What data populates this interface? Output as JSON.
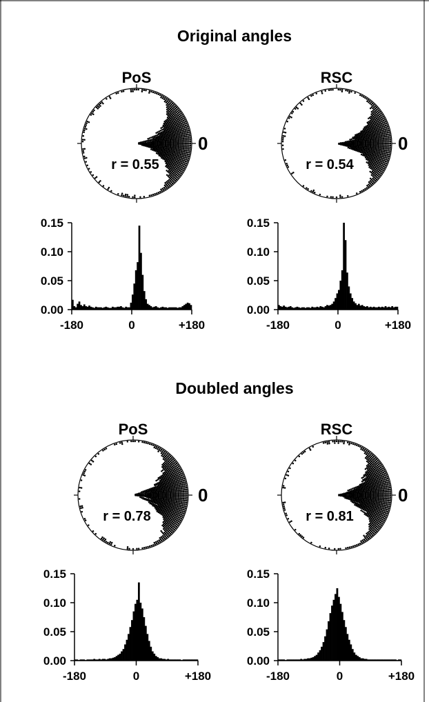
{
  "sections": [
    {
      "title": "Original angles",
      "panels": [
        {
          "label": "PoS",
          "r_text": "r = 0.55",
          "zero_label": "0"
        },
        {
          "label": "RSC",
          "r_text": "r = 0.54",
          "zero_label": "0"
        }
      ]
    },
    {
      "title": "Doubled angles",
      "panels": [
        {
          "label": "PoS",
          "r_text": "r = 0.78",
          "zero_label": "0"
        },
        {
          "label": "RSC",
          "r_text": "r = 0.81",
          "zero_label": "0"
        }
      ]
    }
  ],
  "axes": {
    "x_tick_labels": [
      "-180",
      "0",
      "+180"
    ],
    "y_tick_labels": [
      "0.00",
      "0.05",
      "0.10",
      "0.15"
    ]
  },
  "chart_data": [
    {
      "type": "polar-dot-histogram",
      "section": "Original angles",
      "title": "PoS",
      "annotation": "r = 0.55",
      "r": 0.55,
      "peak_direction_deg": 0,
      "concentration": 5.5
    },
    {
      "type": "polar-dot-histogram",
      "section": "Original angles",
      "title": "RSC",
      "annotation": "r = 0.54",
      "r": 0.54,
      "peak_direction_deg": 0,
      "concentration": 7.0
    },
    {
      "type": "bar",
      "section": "Original angles",
      "title": "PoS",
      "xlim": [
        -180,
        180
      ],
      "ylim": [
        0,
        0.15
      ],
      "x_ticks": [
        -180,
        0,
        180
      ],
      "y_ticks": [
        0,
        0.05,
        0.1,
        0.15
      ],
      "peak_value": 0.145,
      "values": [
        0.017,
        0.006,
        0.004,
        0.01,
        0.014,
        0.008,
        0.006,
        0.009,
        0.006,
        0.005,
        0.007,
        0.005,
        0.004,
        0.003,
        0.005,
        0.004,
        0.004,
        0.004,
        0.003,
        0.004,
        0.005,
        0.004,
        0.003,
        0.003,
        0.005,
        0.004,
        0.004,
        0.005,
        0.005,
        0.006,
        0.004,
        0.003,
        0.005,
        0.004,
        0.004,
        0.012,
        0.026,
        0.045,
        0.068,
        0.082,
        0.145,
        0.098,
        0.06,
        0.032,
        0.018,
        0.01,
        0.008,
        0.006,
        0.004,
        0.005,
        0.006,
        0.004,
        0.003,
        0.004,
        0.005,
        0.004,
        0.004,
        0.003,
        0.004,
        0.004,
        0.004,
        0.004,
        0.004,
        0.003,
        0.004,
        0.004,
        0.006,
        0.008,
        0.01,
        0.012,
        0.011,
        0.008
      ]
    },
    {
      "type": "bar",
      "section": "Original angles",
      "title": "RSC",
      "xlim": [
        -180,
        180
      ],
      "ylim": [
        0,
        0.15
      ],
      "x_ticks": [
        -180,
        0,
        180
      ],
      "y_ticks": [
        0,
        0.05,
        0.1,
        0.15
      ],
      "peak_value": 0.15,
      "values": [
        0.008,
        0.006,
        0.005,
        0.007,
        0.005,
        0.004,
        0.005,
        0.006,
        0.004,
        0.003,
        0.004,
        0.005,
        0.004,
        0.003,
        0.004,
        0.004,
        0.003,
        0.004,
        0.004,
        0.003,
        0.005,
        0.004,
        0.004,
        0.005,
        0.004,
        0.006,
        0.005,
        0.004,
        0.006,
        0.008,
        0.007,
        0.008,
        0.01,
        0.014,
        0.02,
        0.028,
        0.034,
        0.05,
        0.068,
        0.15,
        0.12,
        0.064,
        0.04,
        0.028,
        0.02,
        0.014,
        0.011,
        0.008,
        0.01,
        0.007,
        0.008,
        0.006,
        0.005,
        0.006,
        0.004,
        0.005,
        0.004,
        0.005,
        0.004,
        0.004,
        0.005,
        0.004,
        0.005,
        0.004,
        0.006,
        0.004,
        0.005,
        0.004,
        0.006,
        0.004,
        0.005,
        0.005
      ]
    },
    {
      "type": "polar-dot-histogram",
      "section": "Doubled angles",
      "title": "PoS",
      "annotation": "r = 0.78",
      "r": 0.78,
      "peak_direction_deg": 0,
      "concentration": 5.0
    },
    {
      "type": "polar-dot-histogram",
      "section": "Doubled angles",
      "title": "RSC",
      "annotation": "r = 0.81",
      "r": 0.81,
      "peak_direction_deg": 0,
      "concentration": 5.5
    },
    {
      "type": "bar",
      "section": "Doubled angles",
      "title": "PoS",
      "xlim": [
        -180,
        180
      ],
      "ylim": [
        0,
        0.15
      ],
      "x_ticks": [
        -180,
        0,
        180
      ],
      "y_ticks": [
        0,
        0.05,
        0.1,
        0.15
      ],
      "peak_value": 0.135,
      "values": [
        0.002,
        0.002,
        0.001,
        0.002,
        0.002,
        0.002,
        0.001,
        0.002,
        0.002,
        0.002,
        0.002,
        0.003,
        0.002,
        0.002,
        0.003,
        0.002,
        0.003,
        0.003,
        0.002,
        0.003,
        0.004,
        0.004,
        0.005,
        0.006,
        0.008,
        0.01,
        0.012,
        0.016,
        0.02,
        0.028,
        0.036,
        0.046,
        0.058,
        0.07,
        0.085,
        0.098,
        0.105,
        0.135,
        0.1,
        0.09,
        0.075,
        0.06,
        0.046,
        0.034,
        0.024,
        0.016,
        0.012,
        0.008,
        0.006,
        0.004,
        0.004,
        0.003,
        0.003,
        0.002,
        0.003,
        0.002,
        0.002,
        0.002,
        0.002,
        0.002,
        0.002,
        0.002,
        0.001,
        0.002,
        0.002,
        0.002,
        0.002,
        0.002,
        0.002,
        0.002,
        0.002,
        0.002
      ]
    },
    {
      "type": "bar",
      "section": "Doubled angles",
      "title": "RSC",
      "xlim": [
        -180,
        180
      ],
      "ylim": [
        0,
        0.15
      ],
      "x_ticks": [
        -180,
        0,
        180
      ],
      "y_ticks": [
        0,
        0.05,
        0.1,
        0.15
      ],
      "peak_value": 0.125,
      "values": [
        0.002,
        0.002,
        0.002,
        0.002,
        0.001,
        0.002,
        0.002,
        0.002,
        0.002,
        0.002,
        0.002,
        0.002,
        0.002,
        0.003,
        0.002,
        0.003,
        0.003,
        0.004,
        0.004,
        0.005,
        0.006,
        0.008,
        0.01,
        0.014,
        0.018,
        0.024,
        0.032,
        0.042,
        0.054,
        0.068,
        0.082,
        0.095,
        0.105,
        0.115,
        0.125,
        0.11,
        0.098,
        0.084,
        0.07,
        0.058,
        0.046,
        0.036,
        0.028,
        0.02,
        0.014,
        0.01,
        0.008,
        0.006,
        0.004,
        0.004,
        0.003,
        0.003,
        0.002,
        0.002,
        0.002,
        0.002,
        0.002,
        0.002,
        0.002,
        0.002,
        0.002,
        0.002,
        0.002,
        0.002,
        0.002,
        0.002,
        0.002,
        0.002,
        0.002,
        0.001,
        0.002,
        0.002
      ]
    }
  ]
}
